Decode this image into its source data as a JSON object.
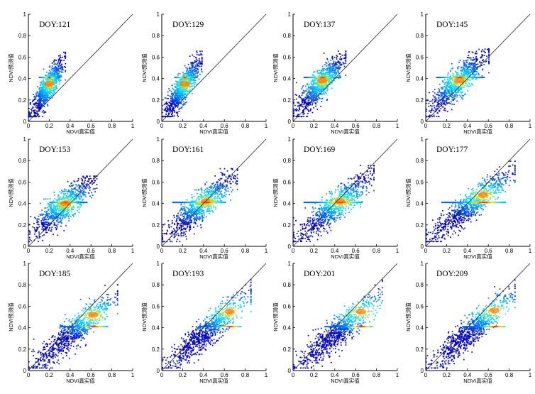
{
  "figure": {
    "xlabel": "NDVI真实值",
    "ylabel": "NDVI预测值",
    "xticks": [
      "0",
      "0.2",
      "0.4",
      "0.6",
      "0.8",
      "1"
    ],
    "yticks": [
      "0",
      "0.2",
      "0.4",
      "0.6",
      "0.8",
      "1"
    ]
  },
  "chart_data": [
    {
      "type": "scatter",
      "title": "DOY:121",
      "xlim": [
        0,
        1
      ],
      "ylim": [
        0,
        1
      ],
      "reference_line": "1:1",
      "density_center": [
        0.2,
        0.35
      ],
      "horizontal_band_y": 0.41,
      "band_x_range": [
        0.1,
        0.3
      ],
      "cloud": {
        "x_range": [
          0.0,
          0.35
        ],
        "y_range": [
          0.05,
          0.65
        ]
      }
    },
    {
      "type": "scatter",
      "title": "DOY:129",
      "xlim": [
        0,
        1
      ],
      "ylim": [
        0,
        1
      ],
      "reference_line": "1:1",
      "density_center": [
        0.22,
        0.35
      ],
      "horizontal_band_y": 0.41,
      "band_x_range": [
        0.12,
        0.33
      ],
      "cloud": {
        "x_range": [
          0.0,
          0.38
        ],
        "y_range": [
          0.05,
          0.66
        ]
      }
    },
    {
      "type": "scatter",
      "title": "DOY:137",
      "xlim": [
        0,
        1
      ],
      "ylim": [
        0,
        1
      ],
      "reference_line": "1:1",
      "density_center": [
        0.28,
        0.38
      ],
      "horizontal_band_y": 0.41,
      "band_x_range": [
        0.1,
        0.45
      ],
      "cloud": {
        "x_range": [
          0.0,
          0.5
        ],
        "y_range": [
          0.05,
          0.66
        ]
      }
    },
    {
      "type": "scatter",
      "title": "DOY:145",
      "xlim": [
        0,
        1
      ],
      "ylim": [
        0,
        1
      ],
      "reference_line": "1:1",
      "density_center": [
        0.32,
        0.38
      ],
      "horizontal_band_y": 0.41,
      "band_x_range": [
        0.1,
        0.55
      ],
      "cloud": {
        "x_range": [
          0.0,
          0.6
        ],
        "y_range": [
          0.05,
          0.68
        ]
      }
    },
    {
      "type": "scatter",
      "title": "DOY:153",
      "xlim": [
        0,
        1
      ],
      "ylim": [
        0,
        1
      ],
      "reference_line": "1:1",
      "density_center": [
        0.35,
        0.4
      ],
      "horizontal_band_y": 0.41,
      "band_x_range": [
        0.2,
        0.55
      ],
      "cloud": {
        "x_range": [
          0.0,
          0.65
        ],
        "y_range": [
          0.05,
          0.66
        ]
      }
    },
    {
      "type": "scatter",
      "title": "DOY:161",
      "xlim": [
        0,
        1
      ],
      "ylim": [
        0,
        1
      ],
      "reference_line": "1:1",
      "density_center": [
        0.42,
        0.42
      ],
      "horizontal_band_y": 0.41,
      "band_x_range": [
        0.1,
        0.6
      ],
      "cloud": {
        "x_range": [
          0.0,
          0.72
        ],
        "y_range": [
          0.05,
          0.73
        ]
      }
    },
    {
      "type": "scatter",
      "title": "DOY:169",
      "xlim": [
        0,
        1
      ],
      "ylim": [
        0,
        1
      ],
      "reference_line": "1:1",
      "density_center": [
        0.45,
        0.42
      ],
      "horizontal_band_y": 0.41,
      "band_x_range": [
        0.1,
        0.65
      ],
      "cloud": {
        "x_range": [
          0.0,
          0.77
        ],
        "y_range": [
          0.05,
          0.76
        ]
      }
    },
    {
      "type": "scatter",
      "title": "DOY:177",
      "xlim": [
        0,
        1
      ],
      "ylim": [
        0,
        1
      ],
      "reference_line": "1:1",
      "density_center": [
        0.55,
        0.48
      ],
      "horizontal_band_y": 0.41,
      "band_x_range": [
        0.15,
        0.75
      ],
      "cloud": {
        "x_range": [
          0.0,
          0.85
        ],
        "y_range": [
          0.05,
          0.8
        ]
      }
    },
    {
      "type": "scatter",
      "title": "DOY:185",
      "xlim": [
        0,
        1
      ],
      "ylim": [
        0,
        1
      ],
      "reference_line": "1:1",
      "density_center": [
        0.62,
        0.52
      ],
      "horizontal_band_y": 0.41,
      "band_x_range": [
        0.3,
        0.75
      ],
      "cloud": {
        "x_range": [
          0.0,
          0.85
        ],
        "y_range": [
          0.03,
          0.85
        ]
      }
    },
    {
      "type": "scatter",
      "title": "DOY:193",
      "xlim": [
        0,
        1
      ],
      "ylim": [
        0,
        1
      ],
      "reference_line": "1:1",
      "density_center": [
        0.65,
        0.55
      ],
      "horizontal_band_y": 0.41,
      "band_x_range": [
        0.35,
        0.75
      ],
      "cloud": {
        "x_range": [
          0.0,
          0.85
        ],
        "y_range": [
          0.03,
          0.85
        ]
      }
    },
    {
      "type": "scatter",
      "title": "DOY:201",
      "xlim": [
        0,
        1
      ],
      "ylim": [
        0,
        1
      ],
      "reference_line": "1:1",
      "density_center": [
        0.65,
        0.55
      ],
      "horizontal_band_y": 0.41,
      "band_x_range": [
        0.3,
        0.75
      ],
      "cloud": {
        "x_range": [
          0.0,
          0.85
        ],
        "y_range": [
          0.03,
          0.85
        ]
      }
    },
    {
      "type": "scatter",
      "title": "DOY:209",
      "xlim": [
        0,
        1
      ],
      "ylim": [
        0,
        1
      ],
      "reference_line": "1:1",
      "density_center": [
        0.66,
        0.56
      ],
      "horizontal_band_y": 0.41,
      "band_x_range": [
        0.35,
        0.75
      ],
      "cloud": {
        "x_range": [
          0.0,
          0.85
        ],
        "y_range": [
          0.03,
          0.85
        ]
      }
    }
  ],
  "colors": {
    "density_low": "#0000dd",
    "density_mid": "#00c8ff",
    "density_high": "#ffe000",
    "density_peak": "#ff2000",
    "reference_line": "#222222",
    "axis": "#000000"
  }
}
